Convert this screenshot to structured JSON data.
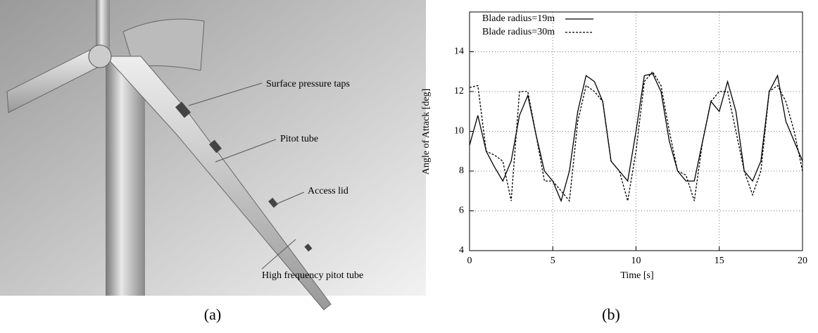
{
  "figure": {
    "annotations": [
      "Surface pressure taps",
      "Pitot tube",
      "Access lid",
      "High frequency pitot tube"
    ],
    "captions": [
      "(a)",
      "(b)"
    ]
  },
  "chart_data": {
    "type": "line",
    "xlabel": "Time [s]",
    "ylabel": "Angle of Attack [deg]",
    "x": [
      0,
      0.5,
      1,
      1.5,
      2,
      2.5,
      3,
      3.5,
      4,
      4.5,
      5,
      5.5,
      6,
      6.5,
      7,
      7.5,
      8,
      8.5,
      9,
      9.5,
      10,
      10.5,
      11,
      11.5,
      12,
      12.5,
      13,
      13.5,
      14,
      14.5,
      15,
      15.5,
      16,
      16.5,
      17,
      17.5,
      18,
      18.5,
      19,
      19.5,
      20
    ],
    "series": [
      {
        "name": "Blade radius=19m",
        "color": "#000000",
        "style": "solid",
        "values": [
          9.3,
          10.8,
          9.0,
          8.2,
          7.5,
          8.5,
          10.8,
          11.8,
          9.8,
          8.0,
          7.5,
          6.5,
          8.0,
          11.0,
          12.8,
          12.5,
          11.5,
          8.5,
          8.0,
          7.5,
          10.0,
          12.8,
          12.9,
          12.0,
          9.5,
          8.0,
          7.5,
          7.5,
          9.5,
          11.5,
          11.0,
          12.5,
          11.0,
          8.0,
          7.5,
          8.5,
          12.0,
          12.8,
          10.5,
          9.5,
          8.5
        ]
      },
      {
        "name": "Blade radius=30m",
        "color": "#000000",
        "style": "dashed",
        "values": [
          12.2,
          12.3,
          9.0,
          8.8,
          8.5,
          6.5,
          12.0,
          12.0,
          9.8,
          7.5,
          7.5,
          7.0,
          6.5,
          10.5,
          12.3,
          12.0,
          11.5,
          8.5,
          8.0,
          6.5,
          9.0,
          12.5,
          13.0,
          12.3,
          10.0,
          8.0,
          7.8,
          6.5,
          9.5,
          11.5,
          12.0,
          12.0,
          10.0,
          8.0,
          6.8,
          8.0,
          12.0,
          12.3,
          11.5,
          10.0,
          8.0
        ]
      }
    ],
    "xlim": [
      0,
      20
    ],
    "xticks": [
      0,
      5,
      10,
      15,
      20
    ],
    "ylim": [
      4,
      16
    ],
    "yticks": [
      4,
      6,
      8,
      10,
      12,
      14
    ],
    "grid": true,
    "legend": "upper left"
  }
}
